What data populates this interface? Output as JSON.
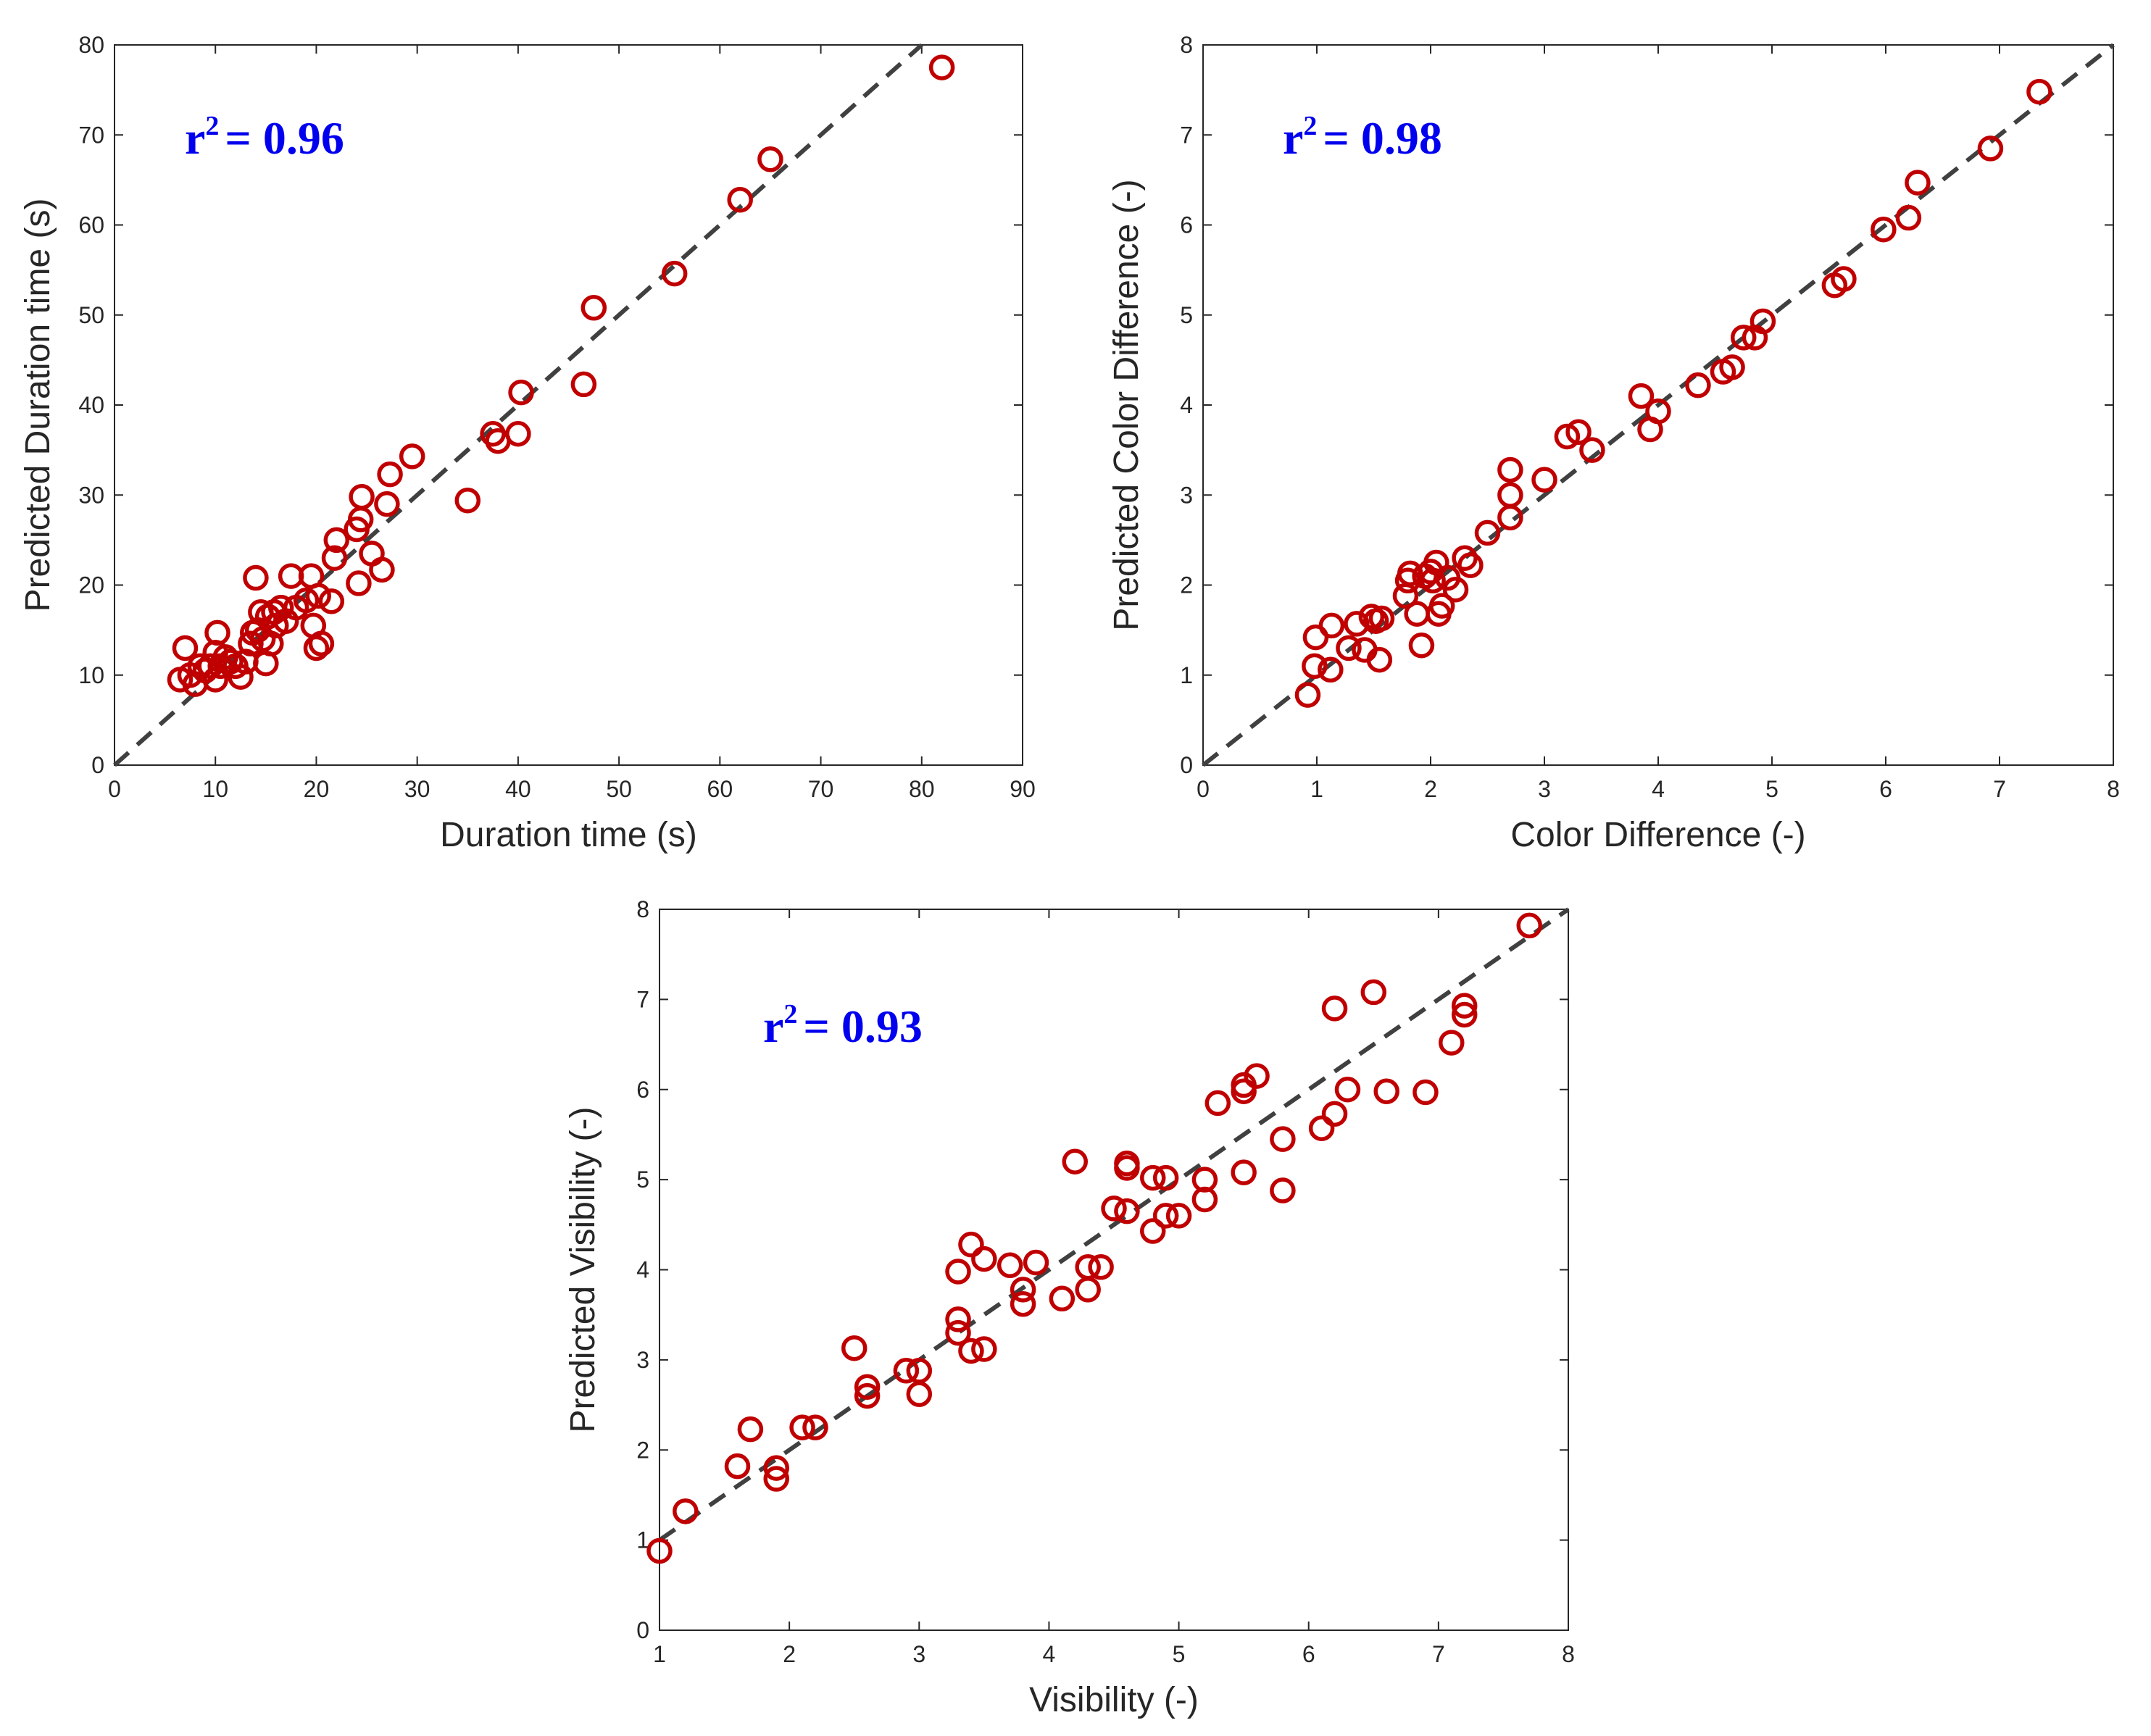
{
  "colors": {
    "marker": "#c00000",
    "diagonal": "#404040",
    "axis": "#262626",
    "r2": "#0000ee"
  },
  "chart_data": [
    {
      "type": "scatter",
      "title": "",
      "xlabel": "Duration time (s)",
      "ylabel": "Predicted Duration time (s)",
      "xlim": [
        0,
        90
      ],
      "ylim": [
        0,
        80
      ],
      "xticks": [
        0,
        10,
        20,
        30,
        40,
        50,
        60,
        70,
        80,
        90
      ],
      "yticks": [
        0,
        10,
        20,
        30,
        40,
        50,
        60,
        70,
        80
      ],
      "r2_base": "r",
      "r2_exp": "2",
      "r2_value": "= 0.96",
      "reference_line": "y = x",
      "points": [
        [
          6.5,
          9.5
        ],
        [
          7,
          13
        ],
        [
          7.5,
          10
        ],
        [
          8,
          9
        ],
        [
          8.5,
          11
        ],
        [
          9,
          10.5
        ],
        [
          9.5,
          11
        ],
        [
          10,
          9.5
        ],
        [
          10,
          12.5
        ],
        [
          10.2,
          14.7
        ],
        [
          10.5,
          11
        ],
        [
          11,
          12
        ],
        [
          11.5,
          11.5
        ],
        [
          12,
          11
        ],
        [
          12.5,
          9.8
        ],
        [
          13,
          11.5
        ],
        [
          13.5,
          13.5
        ],
        [
          13.7,
          14.7
        ],
        [
          14,
          20.8
        ],
        [
          14.2,
          15
        ],
        [
          14.5,
          17
        ],
        [
          14.7,
          14
        ],
        [
          15,
          11.3
        ],
        [
          15.2,
          16.5
        ],
        [
          15.5,
          13.5
        ],
        [
          15.8,
          17
        ],
        [
          16,
          15.5
        ],
        [
          16.5,
          17.5
        ],
        [
          17,
          16
        ],
        [
          17.5,
          21
        ],
        [
          18,
          17.5
        ],
        [
          19,
          18.3
        ],
        [
          19.5,
          21
        ],
        [
          19.7,
          15.5
        ],
        [
          20,
          13
        ],
        [
          20.2,
          18.8
        ],
        [
          20.5,
          13.5
        ],
        [
          21.5,
          18.2
        ],
        [
          21.8,
          23
        ],
        [
          22,
          25
        ],
        [
          24,
          26.2
        ],
        [
          24.2,
          20.2
        ],
        [
          24.4,
          27.3
        ],
        [
          24.5,
          29.8
        ],
        [
          25.5,
          23.5
        ],
        [
          26.5,
          21.7
        ],
        [
          27,
          29
        ],
        [
          27.3,
          32.3
        ],
        [
          29.5,
          34.3
        ],
        [
          35,
          29.4
        ],
        [
          37.5,
          36.8
        ],
        [
          38,
          36
        ],
        [
          40,
          36.8
        ],
        [
          40.3,
          41.4
        ],
        [
          46.5,
          42.3
        ],
        [
          47.5,
          50.8
        ],
        [
          55.5,
          54.6
        ],
        [
          62,
          62.8
        ],
        [
          65,
          67.3
        ],
        [
          82,
          77.5
        ]
      ]
    },
    {
      "type": "scatter",
      "title": "",
      "xlabel": "Color Difference (-)",
      "ylabel": "Predicted Color Difference (-)",
      "xlim": [
        0,
        8
      ],
      "ylim": [
        0,
        8
      ],
      "xticks": [
        0,
        1,
        2,
        3,
        4,
        5,
        6,
        7,
        8
      ],
      "yticks": [
        0,
        1,
        2,
        3,
        4,
        5,
        6,
        7,
        8
      ],
      "r2_base": "r",
      "r2_exp": "2",
      "r2_value": "= 0.98",
      "reference_line": "y = x",
      "points": [
        [
          0.92,
          0.78
        ],
        [
          0.98,
          1.1
        ],
        [
          0.99,
          1.42
        ],
        [
          1.12,
          1.06
        ],
        [
          1.13,
          1.55
        ],
        [
          1.28,
          1.3
        ],
        [
          1.35,
          1.57
        ],
        [
          1.42,
          1.28
        ],
        [
          1.48,
          1.65
        ],
        [
          1.52,
          1.6
        ],
        [
          1.55,
          1.17
        ],
        [
          1.57,
          1.63
        ],
        [
          1.78,
          1.88
        ],
        [
          1.8,
          2.05
        ],
        [
          1.82,
          2.13
        ],
        [
          1.88,
          1.68
        ],
        [
          1.92,
          1.33
        ],
        [
          1.95,
          2.1
        ],
        [
          2.0,
          2.15
        ],
        [
          2.02,
          2.05
        ],
        [
          2.05,
          2.25
        ],
        [
          2.07,
          1.68
        ],
        [
          2.1,
          1.77
        ],
        [
          2.15,
          2.08
        ],
        [
          2.22,
          1.95
        ],
        [
          2.3,
          2.3
        ],
        [
          2.35,
          2.22
        ],
        [
          2.5,
          2.58
        ],
        [
          2.7,
          2.75
        ],
        [
          2.7,
          3.0
        ],
        [
          2.7,
          3.28
        ],
        [
          3.0,
          3.17
        ],
        [
          3.2,
          3.65
        ],
        [
          3.3,
          3.7
        ],
        [
          3.42,
          3.5
        ],
        [
          3.85,
          4.1
        ],
        [
          3.93,
          3.73
        ],
        [
          4.0,
          3.93
        ],
        [
          4.35,
          4.22
        ],
        [
          4.57,
          4.37
        ],
        [
          4.65,
          4.42
        ],
        [
          4.75,
          4.75
        ],
        [
          4.85,
          4.75
        ],
        [
          4.92,
          4.93
        ],
        [
          5.55,
          5.33
        ],
        [
          5.63,
          5.4
        ],
        [
          5.98,
          5.95
        ],
        [
          6.2,
          6.08
        ],
        [
          6.28,
          6.47
        ],
        [
          6.92,
          6.85
        ],
        [
          7.35,
          7.48
        ]
      ]
    },
    {
      "type": "scatter",
      "title": "",
      "xlabel": "Visibility (-)",
      "ylabel": "Predicted Visibility (-)",
      "xlim": [
        1,
        8
      ],
      "ylim": [
        0,
        8
      ],
      "xticks": [
        1,
        2,
        3,
        4,
        5,
        6,
        7,
        8
      ],
      "yticks": [
        0,
        1,
        2,
        3,
        4,
        5,
        6,
        7,
        8
      ],
      "r2_base": "r",
      "r2_exp": "2",
      "r2_value": "= 0.93",
      "reference_line": "y = x",
      "points": [
        [
          1.0,
          0.88
        ],
        [
          1.2,
          1.32
        ],
        [
          1.6,
          1.82
        ],
        [
          1.7,
          2.23
        ],
        [
          1.9,
          1.68
        ],
        [
          1.9,
          1.8
        ],
        [
          2.1,
          2.25
        ],
        [
          2.2,
          2.25
        ],
        [
          2.5,
          3.13
        ],
        [
          2.6,
          2.6
        ],
        [
          2.6,
          2.7
        ],
        [
          2.9,
          2.88
        ],
        [
          3.0,
          2.62
        ],
        [
          3.0,
          2.88
        ],
        [
          3.3,
          3.3
        ],
        [
          3.3,
          3.45
        ],
        [
          3.3,
          3.98
        ],
        [
          3.4,
          3.1
        ],
        [
          3.4,
          4.28
        ],
        [
          3.5,
          3.12
        ],
        [
          3.5,
          4.12
        ],
        [
          3.7,
          4.05
        ],
        [
          3.8,
          3.62
        ],
        [
          3.8,
          3.78
        ],
        [
          3.9,
          4.08
        ],
        [
          4.1,
          3.68
        ],
        [
          4.2,
          5.2
        ],
        [
          4.3,
          3.78
        ],
        [
          4.3,
          4.03
        ],
        [
          4.4,
          4.03
        ],
        [
          4.5,
          4.68
        ],
        [
          4.6,
          4.65
        ],
        [
          4.6,
          5.13
        ],
        [
          4.6,
          5.18
        ],
        [
          4.8,
          4.43
        ],
        [
          4.8,
          5.02
        ],
        [
          4.9,
          4.6
        ],
        [
          4.9,
          5.02
        ],
        [
          5.0,
          4.6
        ],
        [
          5.2,
          4.78
        ],
        [
          5.2,
          5.0
        ],
        [
          5.3,
          5.85
        ],
        [
          5.5,
          5.08
        ],
        [
          5.5,
          5.98
        ],
        [
          5.5,
          6.05
        ],
        [
          5.6,
          6.15
        ],
        [
          5.8,
          4.88
        ],
        [
          5.8,
          5.45
        ],
        [
          6.1,
          5.57
        ],
        [
          6.2,
          5.73
        ],
        [
          6.2,
          6.9
        ],
        [
          6.3,
          6.0
        ],
        [
          6.5,
          7.08
        ],
        [
          6.6,
          5.98
        ],
        [
          6.9,
          5.97
        ],
        [
          7.1,
          6.52
        ],
        [
          7.2,
          6.83
        ],
        [
          7.2,
          6.93
        ],
        [
          7.7,
          7.82
        ]
      ]
    }
  ]
}
